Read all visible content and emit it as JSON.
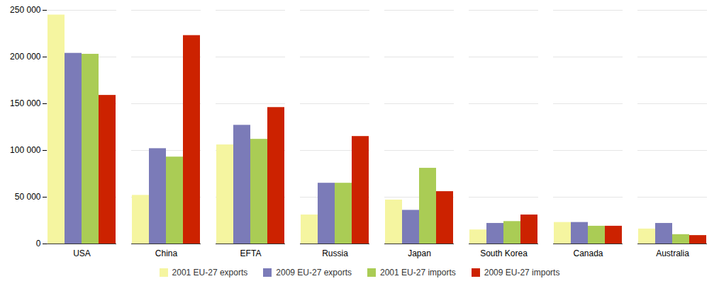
{
  "chart_data": {
    "type": "bar",
    "categories": [
      "USA",
      "China",
      "EFTA",
      "Russia",
      "Japan",
      "South Korea",
      "Canada",
      "Australia"
    ],
    "series": [
      {
        "name": "2001 EU-27 exports",
        "color": "#F5F5A0",
        "values": [
          245000,
          52000,
          106000,
          31000,
          47000,
          15000,
          23000,
          16000
        ]
      },
      {
        "name": "2009 EU-27 exports",
        "color": "#7B7BB8",
        "values": [
          204000,
          102000,
          127000,
          65000,
          36000,
          22000,
          23000,
          22000
        ]
      },
      {
        "name": "2001 EU-27 imports",
        "color": "#AACC55",
        "values": [
          203000,
          93000,
          112000,
          65000,
          81000,
          24000,
          19000,
          10000
        ]
      },
      {
        "name": "2009 EU-27 imports",
        "color": "#CC2200",
        "values": [
          159000,
          223000,
          146000,
          115000,
          56000,
          31000,
          19000,
          9000
        ]
      }
    ],
    "ylim": [
      0,
      250000
    ],
    "yticks": [
      0,
      {
        "value": 50000,
        "label": "50 000"
      },
      {
        "value": 100000,
        "label": "100 000"
      },
      {
        "value": 150000,
        "label": "150 000"
      },
      {
        "value": 200000,
        "label": "200 000"
      },
      {
        "value": 250000,
        "label": "250 000"
      }
    ],
    "grid": true,
    "legend": "bottom"
  }
}
